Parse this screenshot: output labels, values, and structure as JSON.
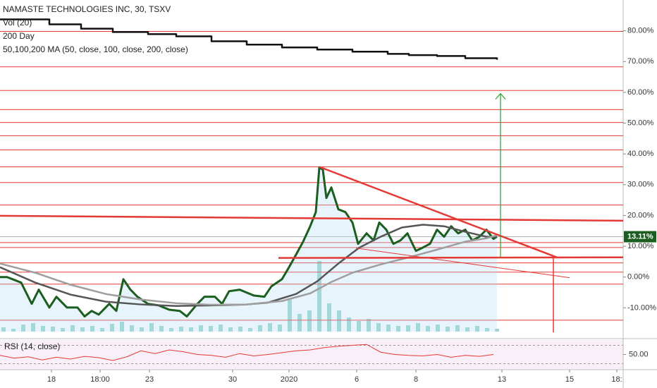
{
  "chart_data": {
    "type": "line",
    "title": "NAMASTE TECHNOLOGIES INC, 30, TSXV",
    "subtitle": "50,100,200 MA (50, close, 100, close, 200, close)",
    "xlim": [
      0,
      884
    ],
    "xticks": [
      {
        "value": 73,
        "label": "18"
      },
      {
        "value": 142,
        "label": "18:00"
      },
      {
        "value": 212,
        "label": "23"
      },
      {
        "value": 330,
        "label": "30"
      },
      {
        "value": 410,
        "label": "2020"
      },
      {
        "value": 506,
        "label": "6"
      },
      {
        "value": 590,
        "label": "8"
      },
      {
        "value": 712,
        "label": "13"
      },
      {
        "value": 808,
        "label": "15"
      },
      {
        "value": 875,
        "label": "18:"
      }
    ],
    "ylim": [
      -20,
      90
    ],
    "yticks": [
      {
        "value": -10,
        "label": "-10.00%"
      },
      {
        "value": 0,
        "label": "0.00%"
      },
      {
        "value": 10,
        "label": "10.00%"
      },
      {
        "value": 20,
        "label": "20.00%"
      },
      {
        "value": 30,
        "label": "30.00%"
      },
      {
        "value": 40,
        "label": "40.00%"
      },
      {
        "value": 50,
        "label": "50.00%"
      },
      {
        "value": 60,
        "label": "60.00%"
      },
      {
        "value": 70,
        "label": "70.00%"
      },
      {
        "value": 80,
        "label": "80.00%"
      }
    ],
    "last_value": 13.11,
    "last_value_label": "13.11%",
    "series": [
      {
        "color": "#1b5e20",
        "width": 3,
        "fill": true,
        "x": [
          0,
          10,
          30,
          45,
          55,
          70,
          80,
          95,
          110,
          120,
          130,
          140,
          155,
          165,
          175,
          185,
          195,
          210,
          225,
          240,
          255,
          265,
          280,
          290,
          305,
          315,
          325,
          340,
          360,
          375,
          385,
          400,
          410,
          420,
          430,
          440,
          448,
          453,
          458,
          463,
          470,
          480,
          490,
          500,
          508,
          520,
          530,
          538,
          548,
          558,
          568,
          578,
          590,
          600,
          610,
          620,
          630,
          640,
          650,
          660,
          670,
          680,
          690,
          700,
          705
        ],
        "values": [
          0,
          0,
          -1.8,
          -8.7,
          -4.1,
          -9.9,
          -6.4,
          -9.9,
          -9.9,
          -12.8,
          -11,
          -12.2,
          -8.7,
          -11,
          -0.7,
          -4.1,
          -6.4,
          -8.7,
          -9.2,
          -10.6,
          -11,
          -12.8,
          -8.7,
          -6.4,
          -6.4,
          -8.7,
          -4.6,
          -4.1,
          -6,
          -6.4,
          -3,
          -0.7,
          3.2,
          7.3,
          11.5,
          16.5,
          21.1,
          35.6,
          34.9,
          25.7,
          29.1,
          22,
          21.1,
          17.7,
          10.8,
          14.2,
          11.9,
          17.7,
          15.4,
          10.8,
          11.9,
          14.2,
          8.5,
          9.6,
          10.8,
          15.4,
          13.1,
          16.5,
          14.2,
          15.4,
          11.9,
          13.1,
          15.4,
          12.4,
          13.11
        ]
      },
      {
        "color": "#555555",
        "width": 2.5,
        "x": [
          0,
          50,
          100,
          150,
          200,
          250,
          300,
          350,
          380,
          420,
          450,
          480,
          510,
          540,
          570,
          600,
          630,
          660,
          690,
          705
        ],
        "values": [
          3.2,
          -1.8,
          -5.7,
          -8,
          -8.9,
          -9.4,
          -9.2,
          -8.9,
          -8.3,
          -5.5,
          -1.4,
          4.4,
          9.6,
          13.1,
          16.1,
          17,
          16.5,
          14.7,
          13.1,
          13.1
        ]
      },
      {
        "color": "#9e9e9e",
        "width": 2.5,
        "x": [
          0,
          50,
          100,
          150,
          200,
          250,
          300,
          350,
          400,
          440,
          470,
          500,
          540,
          580,
          620,
          660,
          690,
          705
        ],
        "values": [
          4.4,
          1.4,
          -2.5,
          -5.5,
          -7.3,
          -8.5,
          -9,
          -8.9,
          -7.8,
          -5.3,
          -1.6,
          1.4,
          4.1,
          6.4,
          8.9,
          11.5,
          12.6,
          13.6
        ]
      },
      {
        "name": "200 Day",
        "color": "#111111",
        "width": 2.5,
        "step": true,
        "x": [
          0,
          40,
          70,
          115,
          160,
          210,
          250,
          300,
          350,
          400,
          450,
          500,
          550,
          580,
          620,
          660,
          700,
          705
        ],
        "values": [
          83.7,
          83.7,
          82.1,
          80.7,
          79.6,
          78.9,
          78.2,
          76.6,
          75.5,
          74.6,
          73.9,
          73.2,
          72.5,
          72.1,
          71.8,
          71.1,
          71.1,
          70.6
        ]
      }
    ],
    "levels": [
      79.8,
      68.3,
      60.6,
      54.4,
      50.2,
      45.9,
      41.3,
      35.8,
      30.7,
      23.4,
      11.2,
      9.6,
      4.6,
      1.6,
      -2.3,
      -14
    ],
    "level_color": "#e53935",
    "trendlines": [
      {
        "x": [
          453,
          790
        ],
        "y": [
          35.8,
          6.4
        ],
        "width": 2.5
      },
      {
        "x": [
          395,
          884
        ],
        "y": [
          6.2,
          6.4
        ],
        "width": 2.5
      },
      {
        "x": [
          0,
          884
        ],
        "y": [
          19.9,
          18.3
        ],
        "width": 2.5
      },
      {
        "x": [
          505,
          808
        ],
        "y": [
          9.4,
          -0.2
        ],
        "width": 1
      },
      {
        "x": [
          785,
          785
        ],
        "y": [
          6.4,
          -18
        ],
        "width": 1.5
      }
    ],
    "target_arrow": {
      "x": 710,
      "y": [
        6.4,
        59.6
      ],
      "color": "#2e9e2e"
    },
    "volume": {
      "name": "Vol (20)",
      "color": "#26a69a",
      "ylim": [
        0,
        180
      ],
      "x": [
        5,
        19,
        33,
        47,
        61,
        75,
        89,
        103,
        117,
        131,
        145,
        159,
        173,
        187,
        201,
        215,
        229,
        243,
        257,
        271,
        285,
        299,
        313,
        327,
        341,
        355,
        369,
        383,
        397,
        411,
        425,
        439,
        453,
        467,
        481,
        495,
        509,
        523,
        537,
        551,
        565,
        579,
        593,
        607,
        621,
        635,
        649,
        663,
        677,
        691,
        705
      ],
      "values": [
        6,
        4,
        10,
        12,
        8,
        7,
        5,
        9,
        6,
        8,
        5,
        11,
        14,
        9,
        6,
        12,
        8,
        5,
        7,
        6,
        9,
        8,
        10,
        6,
        7,
        5,
        9,
        12,
        10,
        45,
        25,
        30,
        100,
        40,
        30,
        20,
        15,
        18,
        12,
        10,
        8,
        9,
        12,
        8,
        10,
        7,
        9,
        6,
        8,
        5,
        4
      ]
    },
    "rsi": {
      "name": "RSI (14, close)",
      "color": "#e53935",
      "ylim": [
        20,
        80
      ],
      "bands": [
        70,
        30
      ],
      "yticks": [
        {
          "value": 50,
          "label": "50.00"
        }
      ],
      "x": [
        0,
        20,
        40,
        60,
        80,
        100,
        120,
        140,
        160,
        180,
        200,
        220,
        240,
        260,
        280,
        300,
        320,
        340,
        360,
        380,
        400,
        420,
        440,
        460,
        480,
        500,
        520,
        540,
        560,
        580,
        600,
        620,
        640,
        660,
        680,
        700
      ],
      "values": [
        48,
        42,
        45,
        38,
        44,
        40,
        46,
        43,
        37,
        45,
        58,
        52,
        60,
        56,
        50,
        48,
        44,
        52,
        47,
        50,
        54,
        58,
        60,
        65,
        68,
        70,
        72,
        55,
        50,
        48,
        47,
        50,
        44,
        48,
        46,
        50
      ]
    }
  }
}
